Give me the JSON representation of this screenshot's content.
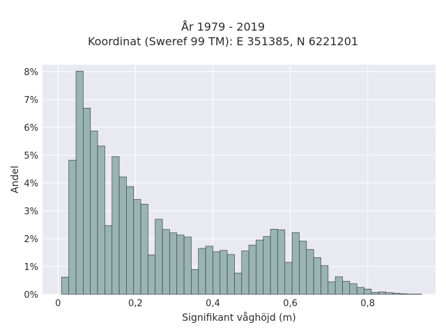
{
  "chart_data": {
    "type": "bar",
    "title": [
      "År 1979 - 2019",
      "Koordinat (Sweref 99 TM): E 351385, N 6221201"
    ],
    "xlabel": "Signifikant våghöjd (m)",
    "ylabel": "Andel",
    "xlim": [
      -0.04,
      0.975
    ],
    "ylim": [
      0,
      8.25
    ],
    "x_ticks": [
      0,
      0.2,
      0.4,
      0.6,
      0.8
    ],
    "x_tick_labels": [
      "0",
      "0,2",
      "0,4",
      "0,6",
      "0,8"
    ],
    "y_ticks": [
      0,
      1,
      2,
      3,
      4,
      5,
      6,
      7,
      8
    ],
    "y_tick_labels": [
      "0%",
      "1%",
      "2%",
      "3%",
      "4%",
      "5%",
      "6%",
      "7%",
      "8%"
    ],
    "bin_width": 0.0186,
    "bin_start": 0.0093,
    "values": [
      0.62,
      4.82,
      8.02,
      6.69,
      5.87,
      5.33,
      2.47,
      4.95,
      4.22,
      3.87,
      3.41,
      3.24,
      1.42,
      2.7,
      2.33,
      2.21,
      2.13,
      2.06,
      0.89,
      1.65,
      1.73,
      1.53,
      1.58,
      1.43,
      0.76,
      1.56,
      1.77,
      1.95,
      2.08,
      2.34,
      2.32,
      1.15,
      2.22,
      1.91,
      1.61,
      1.32,
      1.03,
      0.45,
      0.63,
      0.47,
      0.38,
      0.25,
      0.19,
      0.07,
      0.09,
      0.06,
      0.04,
      0.02,
      0.01,
      0.01
    ],
    "grid": true,
    "colors": {
      "bar_fill": "#9ab3b3",
      "bar_edge": "#3a4646",
      "plot_bg": "#e9e9f1",
      "grid": "#ffffff"
    }
  }
}
